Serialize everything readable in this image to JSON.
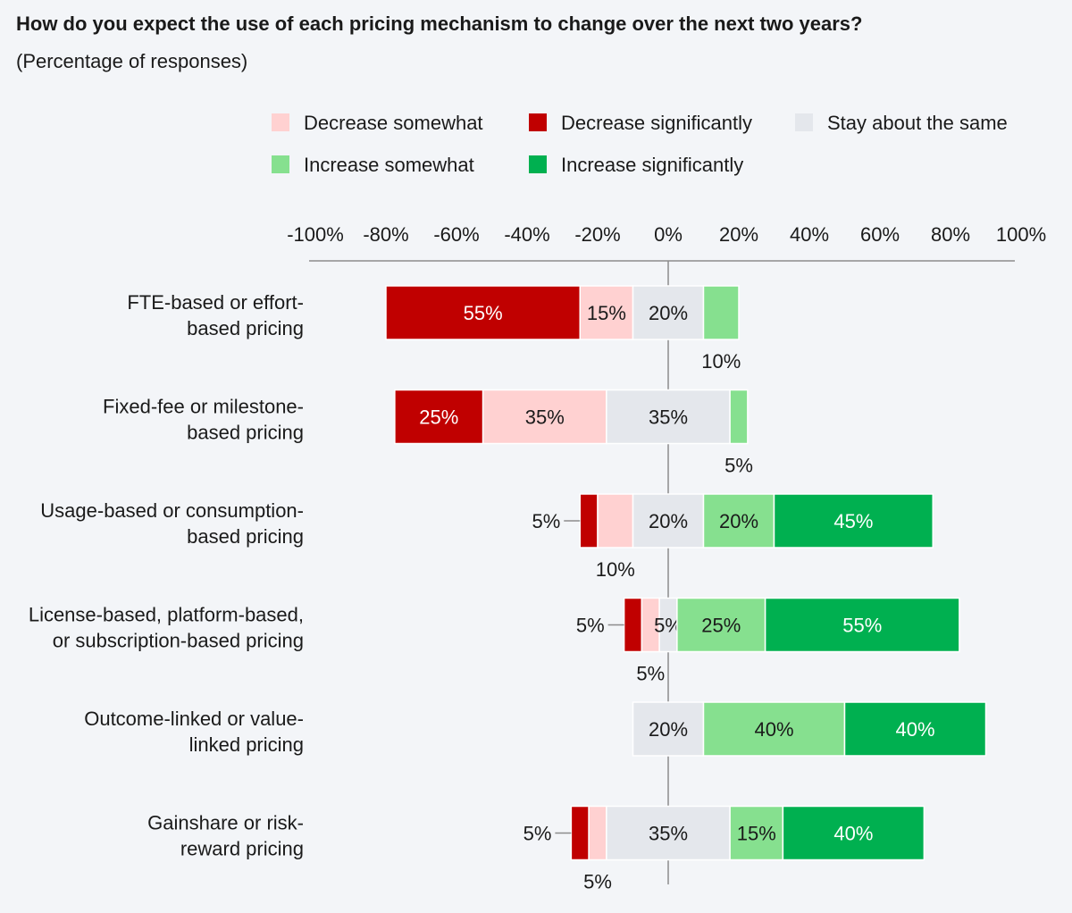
{
  "chart_data": {
    "type": "bar",
    "orientation": "horizontal",
    "stacked": "diverging",
    "title": "How do you expect the use of each pricing mechanism to change over the next two years?",
    "subtitle": "(Percentage of responses)",
    "xlim": [
      -100,
      100
    ],
    "x_ticks": [
      "-100%",
      "-80%",
      "-60%",
      "-40%",
      "-20%",
      "0%",
      "20%",
      "40%",
      "60%",
      "80%",
      "100%"
    ],
    "legend_position": "top-right",
    "legend": [
      {
        "key": "dec_some",
        "label": "Decrease somewhat",
        "color": "#ffd1d1"
      },
      {
        "key": "dec_sig",
        "label": "Decrease significantly",
        "color": "#c00000"
      },
      {
        "key": "same",
        "label": "Stay about the same",
        "color": "#e4e7ec"
      },
      {
        "key": "inc_some",
        "label": "Increase somewhat",
        "color": "#86e08f"
      },
      {
        "key": "inc_sig",
        "label": "Increase significantly",
        "color": "#00b050"
      }
    ],
    "categories": [
      [
        "FTE-based or effort-",
        "based pricing"
      ],
      [
        "Fixed-fee or milestone-",
        "based pricing"
      ],
      [
        "Usage-based or consumption-",
        "based pricing"
      ],
      [
        "License-based, platform-based,",
        "or subscription-based pricing"
      ],
      [
        "Outcome-linked or value-",
        "linked pricing"
      ],
      [
        "Gainshare or risk-",
        "reward pricing"
      ]
    ],
    "series": [
      {
        "key": "dec_sig",
        "name": "Decrease significantly",
        "values": [
          55,
          25,
          5,
          5,
          0,
          5
        ],
        "labels": [
          "55%",
          "25%",
          "5%",
          "5%",
          "",
          "5%"
        ]
      },
      {
        "key": "dec_some",
        "name": "Decrease somewhat",
        "values": [
          15,
          35,
          10,
          5,
          0,
          5
        ],
        "labels": [
          "15%",
          "35%",
          "10%",
          "5%",
          "",
          "5%"
        ]
      },
      {
        "key": "same",
        "name": "Stay about the same",
        "values": [
          20,
          35,
          20,
          5,
          20,
          35
        ],
        "labels": [
          "20%",
          "35%",
          "20%",
          "5%",
          "20%",
          "35%"
        ]
      },
      {
        "key": "inc_some",
        "name": "Increase somewhat",
        "values": [
          10,
          5,
          20,
          25,
          40,
          15
        ],
        "labels": [
          "10%",
          "5%",
          "20%",
          "25%",
          "40%",
          "15%"
        ]
      },
      {
        "key": "inc_sig",
        "name": "Increase significantly",
        "values": [
          0,
          0,
          45,
          55,
          40,
          40
        ],
        "labels": [
          "",
          "",
          "45%",
          "55%",
          "40%",
          "40%"
        ]
      }
    ]
  }
}
